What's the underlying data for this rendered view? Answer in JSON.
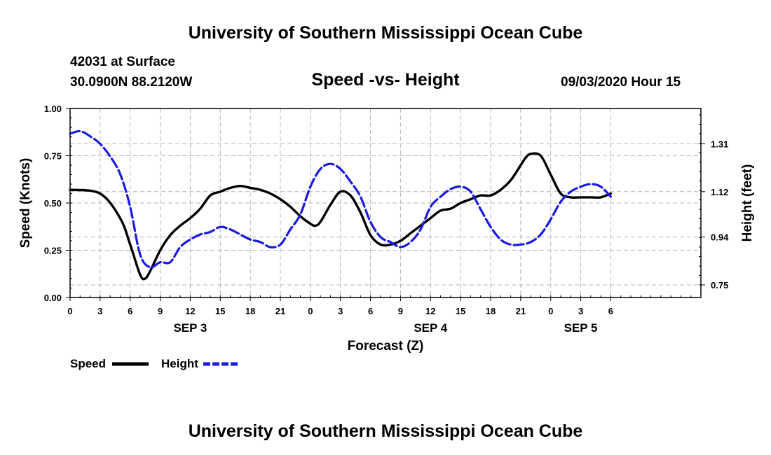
{
  "header": {
    "title_top": "University of Southern Mississippi Ocean Cube",
    "title_bottom": "University of Southern Mississippi Ocean Cube",
    "station": "42031 at Surface",
    "location": "30.0900N 88.2120W",
    "plot_title": "Speed -vs- Height",
    "datetime": "09/03/2020 Hour 15"
  },
  "legend": {
    "speed_label": "Speed",
    "height_label": "Height"
  },
  "colors": {
    "speed": "#000000",
    "height": "#1a1ae0",
    "grid": "#b4b4b4"
  },
  "chart_data": {
    "type": "line",
    "title": "Speed -vs- Height",
    "xlabel": "Forecast (Z)",
    "ylabel": "Speed (Knots)",
    "y2label": "Height (feet)",
    "x_range_hours": [
      0,
      63
    ],
    "x_ticks": [
      {
        "h": 0,
        "label": "0"
      },
      {
        "h": 3,
        "label": "3"
      },
      {
        "h": 6,
        "label": "6"
      },
      {
        "h": 9,
        "label": "9"
      },
      {
        "h": 12,
        "label": "12"
      },
      {
        "h": 15,
        "label": "15"
      },
      {
        "h": 18,
        "label": "18"
      },
      {
        "h": 21,
        "label": "21"
      },
      {
        "h": 24,
        "label": "0"
      },
      {
        "h": 27,
        "label": "3"
      },
      {
        "h": 30,
        "label": "6"
      },
      {
        "h": 33,
        "label": "9"
      },
      {
        "h": 36,
        "label": "12"
      },
      {
        "h": 39,
        "label": "15"
      },
      {
        "h": 42,
        "label": "18"
      },
      {
        "h": 45,
        "label": "21"
      },
      {
        "h": 48,
        "label": "0"
      },
      {
        "h": 51,
        "label": "3"
      },
      {
        "h": 54,
        "label": "6"
      }
    ],
    "day_labels": [
      {
        "h": 12,
        "label": "SEP 3"
      },
      {
        "h": 36,
        "label": "SEP 4"
      },
      {
        "h": 51,
        "label": "SEP 5"
      }
    ],
    "ylim": [
      0,
      1
    ],
    "y_ticks": [
      "0.00",
      "0.25",
      "0.50",
      "0.75",
      "1.00"
    ],
    "y2lim": [
      0.7,
      1.45
    ],
    "y2_ticks": [
      0.75,
      0.94,
      1.12,
      1.31
    ],
    "y2_tick_labels": [
      "0.75",
      "0.94",
      "1.12",
      "1.31"
    ],
    "grid": true,
    "series": [
      {
        "name": "Speed",
        "axis": "left",
        "x": [
          0,
          3,
          5,
          6,
          7,
          7.5,
          8,
          9,
          10,
          11,
          12,
          13,
          14,
          15,
          16,
          17,
          18,
          19,
          20,
          21,
          22,
          23,
          24,
          24.5,
          25,
          26,
          27,
          28,
          29,
          30,
          31,
          32,
          33,
          34,
          35,
          36,
          37,
          38,
          39,
          40,
          41,
          42,
          43,
          44,
          45,
          45.5,
          46,
          47,
          48,
          49,
          50,
          51,
          52,
          53,
          54
        ],
        "values": [
          0.57,
          0.55,
          0.42,
          0.28,
          0.12,
          0.1,
          0.14,
          0.25,
          0.33,
          0.38,
          0.42,
          0.47,
          0.54,
          0.56,
          0.58,
          0.59,
          0.58,
          0.57,
          0.55,
          0.52,
          0.48,
          0.43,
          0.39,
          0.38,
          0.4,
          0.49,
          0.56,
          0.54,
          0.45,
          0.33,
          0.28,
          0.28,
          0.3,
          0.34,
          0.38,
          0.42,
          0.46,
          0.47,
          0.5,
          0.52,
          0.54,
          0.54,
          0.57,
          0.62,
          0.7,
          0.74,
          0.76,
          0.75,
          0.65,
          0.55,
          0.53,
          0.53,
          0.53,
          0.53,
          0.55
        ]
      },
      {
        "name": "Height",
        "axis": "right",
        "x": [
          0,
          1,
          2,
          3,
          4,
          5,
          6,
          7,
          8,
          9,
          10,
          11,
          12,
          13,
          14,
          15,
          16,
          17,
          18,
          19,
          20,
          21,
          22,
          23,
          24,
          25,
          26,
          27,
          28,
          29,
          30,
          31,
          32,
          33,
          34,
          35,
          36,
          37,
          38,
          39,
          40,
          41,
          42,
          43,
          44,
          45,
          46,
          47,
          48,
          49,
          50,
          51,
          52,
          53,
          54
        ],
        "values": [
          1.35,
          1.36,
          1.34,
          1.31,
          1.26,
          1.19,
          1.06,
          0.87,
          0.82,
          0.84,
          0.84,
          0.9,
          0.93,
          0.95,
          0.96,
          0.98,
          0.97,
          0.95,
          0.93,
          0.92,
          0.9,
          0.91,
          0.97,
          1.03,
          1.14,
          1.21,
          1.23,
          1.21,
          1.16,
          1.1,
          1.0,
          0.94,
          0.92,
          0.9,
          0.92,
          0.97,
          1.06,
          1.1,
          1.13,
          1.14,
          1.12,
          1.05,
          0.98,
          0.93,
          0.91,
          0.91,
          0.92,
          0.95,
          1.01,
          1.08,
          1.12,
          1.14,
          1.15,
          1.14,
          1.1
        ]
      }
    ]
  }
}
